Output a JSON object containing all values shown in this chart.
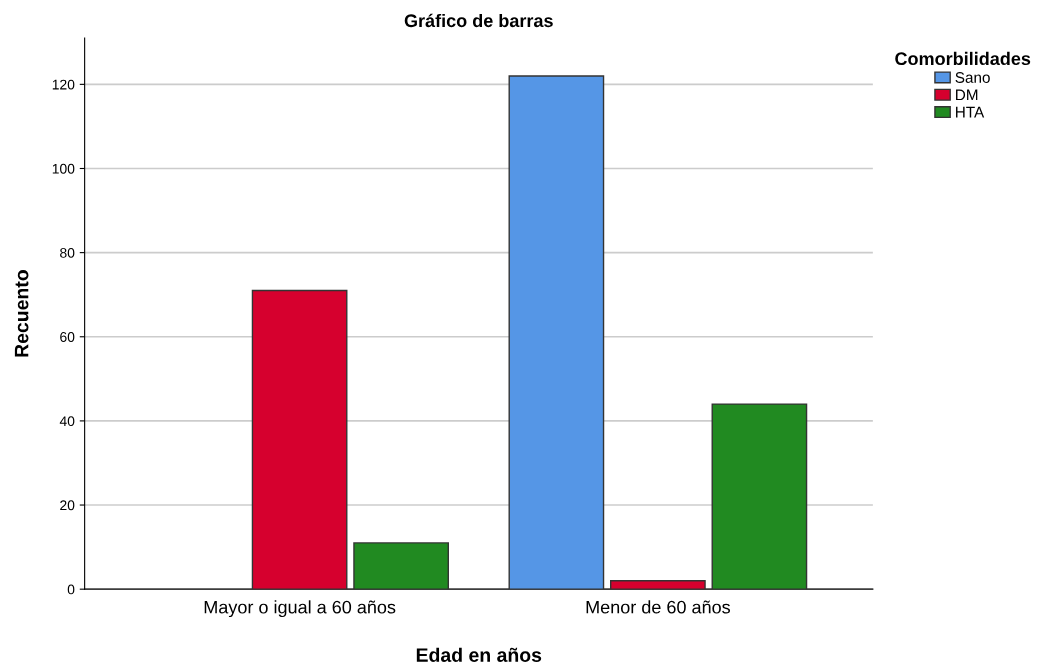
{
  "chart_data": {
    "type": "bar",
    "title": "Gráfico de barras",
    "xlabel": "Edad en años",
    "ylabel": "Recuento",
    "legend_title": "Comorbilidades",
    "categories": [
      "Mayor o igual a 60 años",
      "Menor de 60 años"
    ],
    "series": [
      {
        "name": "Sano",
        "color": "#5596e6",
        "values": [
          0,
          122
        ]
      },
      {
        "name": "DM",
        "color": "#d6002e",
        "values": [
          71,
          2
        ]
      },
      {
        "name": "HTA",
        "color": "#218a21",
        "values": [
          11,
          44
        ]
      }
    ],
    "ylim": [
      0,
      131
    ],
    "yticks": [
      0,
      20,
      40,
      60,
      80,
      100,
      120
    ],
    "grid": "y",
    "legend": "top right"
  }
}
